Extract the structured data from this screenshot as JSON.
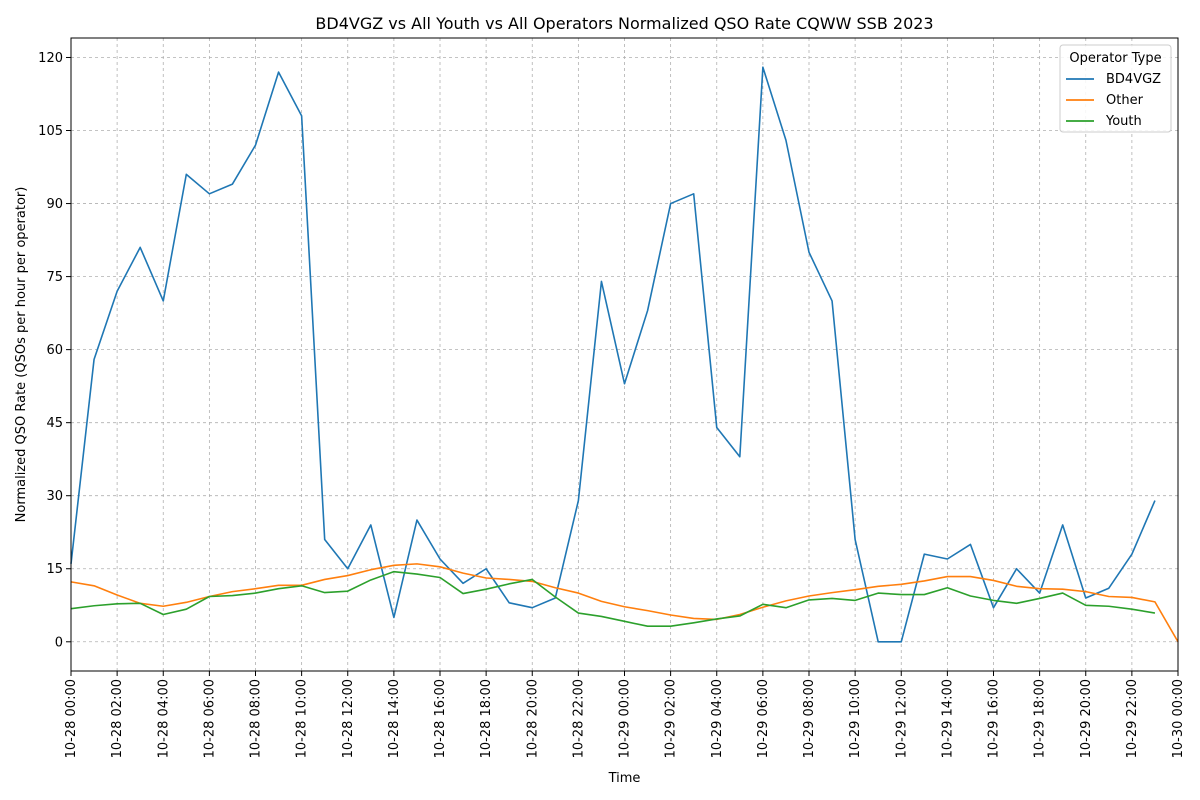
{
  "chart_data": {
    "type": "line",
    "title": "BD4VGZ vs All Youth vs All Operators Normalized QSO Rate CQWW SSB 2023",
    "xlabel": "Time",
    "ylabel": "Normalized QSO Rate (QSOs per hour per operator)",
    "x_start": "10-28 00:00",
    "x_end": "10-30 00:00",
    "x_step_hours": 1,
    "xlim_hours": [
      0,
      48
    ],
    "ylim": [
      -6,
      124
    ],
    "grid": true,
    "x_ticks": [
      {
        "h": 0,
        "label": "10-28 00:00"
      },
      {
        "h": 2,
        "label": "10-28 02:00"
      },
      {
        "h": 4,
        "label": "10-28 04:00"
      },
      {
        "h": 6,
        "label": "10-28 06:00"
      },
      {
        "h": 8,
        "label": "10-28 08:00"
      },
      {
        "h": 10,
        "label": "10-28 10:00"
      },
      {
        "h": 12,
        "label": "10-28 12:00"
      },
      {
        "h": 14,
        "label": "10-28 14:00"
      },
      {
        "h": 16,
        "label": "10-28 16:00"
      },
      {
        "h": 18,
        "label": "10-28 18:00"
      },
      {
        "h": 20,
        "label": "10-28 20:00"
      },
      {
        "h": 22,
        "label": "10-28 22:00"
      },
      {
        "h": 24,
        "label": "10-29 00:00"
      },
      {
        "h": 26,
        "label": "10-29 02:00"
      },
      {
        "h": 28,
        "label": "10-29 04:00"
      },
      {
        "h": 30,
        "label": "10-29 06:00"
      },
      {
        "h": 32,
        "label": "10-29 08:00"
      },
      {
        "h": 34,
        "label": "10-29 10:00"
      },
      {
        "h": 36,
        "label": "10-29 12:00"
      },
      {
        "h": 38,
        "label": "10-29 14:00"
      },
      {
        "h": 40,
        "label": "10-29 16:00"
      },
      {
        "h": 42,
        "label": "10-29 18:00"
      },
      {
        "h": 44,
        "label": "10-29 20:00"
      },
      {
        "h": 46,
        "label": "10-29 22:00"
      },
      {
        "h": 48,
        "label": "10-30 00:00"
      }
    ],
    "y_ticks": [
      {
        "v": 0,
        "label": "0"
      },
      {
        "v": 15,
        "label": "15"
      },
      {
        "v": 30,
        "label": "30"
      },
      {
        "v": 45,
        "label": "45"
      },
      {
        "v": 60,
        "label": "60"
      },
      {
        "v": 75,
        "label": "75"
      },
      {
        "v": 90,
        "label": "90"
      },
      {
        "v": 105,
        "label": "105"
      },
      {
        "v": 120,
        "label": "120"
      }
    ],
    "legend_title": "Operator Type",
    "legend_position": "top-right",
    "series": [
      {
        "name": "BD4VGZ",
        "color": "#1f77b4",
        "values": [
          16,
          58,
          72,
          81,
          70,
          96,
          92,
          94,
          102,
          117,
          108,
          21,
          15,
          24,
          5,
          25,
          17,
          12,
          15,
          8,
          7,
          9,
          29,
          74,
          53,
          68,
          90,
          92,
          44,
          38,
          118,
          103,
          80,
          70,
          21,
          0,
          0,
          18,
          17,
          20,
          7,
          15,
          10,
          24,
          9,
          11,
          18,
          29
        ]
      },
      {
        "name": "Other",
        "color": "#ff7f0e",
        "values": [
          12.3,
          11.5,
          9.6,
          7.9,
          7.3,
          8.1,
          9.3,
          10.3,
          10.9,
          11.6,
          11.6,
          12.8,
          13.6,
          14.8,
          15.7,
          16.0,
          15.4,
          14.1,
          13.1,
          12.8,
          12.4,
          11.1,
          10.0,
          8.3,
          7.2,
          6.4,
          5.5,
          4.8,
          4.6,
          5.6,
          7.1,
          8.4,
          9.4,
          10.1,
          10.7,
          11.4,
          11.8,
          12.5,
          13.4,
          13.4,
          12.6,
          11.4,
          10.9,
          10.8,
          10.3,
          9.3,
          9.1,
          8.2,
          0
        ]
      },
      {
        "name": "Youth",
        "color": "#2ca02c",
        "values": [
          6.8,
          7.4,
          7.8,
          7.9,
          5.6,
          6.7,
          9.3,
          9.5,
          10.0,
          10.9,
          11.5,
          10.1,
          10.4,
          12.7,
          14.4,
          13.9,
          13.2,
          9.9,
          10.8,
          11.9,
          12.8,
          9.2,
          5.9,
          5.2,
          4.2,
          3.2,
          3.2,
          3.9,
          4.7,
          5.3,
          7.7,
          7.0,
          8.6,
          8.9,
          8.5,
          10.0,
          9.7,
          9.7,
          11.1,
          9.4,
          8.5,
          7.9,
          8.9,
          10.0,
          7.5,
          7.3,
          6.7,
          5.9
        ]
      }
    ]
  }
}
